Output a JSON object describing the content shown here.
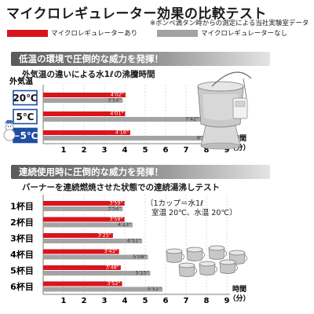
{
  "title": "マイクロレギュレーター効果の比較テスト",
  "note": "※ボンベ満タン時からの測定による当社実験室データ",
  "legend": [
    {
      "label": "マイクロレギュレーターあり",
      "color": "#d9151c"
    },
    {
      "label": "マイクロレギュレーターなし",
      "color": "#a3a3a3"
    }
  ],
  "section1": {
    "banner": "低温の環境で圧倒的な威力を発揮！",
    "subtitle": "外気温の違いによる水1ℓの沸騰時間"
  },
  "section2": {
    "banner": "連続使用時に圧倒的な威力を発揮！",
    "subtitle": "バーナーを連続燃焼させた状態での連続湯沸しテスト",
    "cond_line1": "〔1カップ＝水1ℓ",
    "cond_line2": "室温 20℃、水温 20℃〕"
  },
  "chart_data": [
    {
      "type": "bar",
      "title": "外気温の違いによる水1ℓの沸騰時間",
      "ylabel": "外気温",
      "xlabel": "時間（分）",
      "categories": [
        "20℃",
        "5℃",
        "−5℃"
      ],
      "series": [
        {
          "name": "マイクロレギュレーターあり",
          "values": [
            4.033,
            4.017,
            4.267
          ],
          "labels": [
            "4'02\"",
            "4'01\"",
            "4'16\""
          ]
        },
        {
          "name": "マイクロレギュレーターなし",
          "values": [
            3.9,
            7.7,
            8.267
          ],
          "labels": [
            "3'54\"",
            "7'42\"",
            "8'16\""
          ]
        }
      ],
      "xlim": [
        0,
        9
      ],
      "xticks": [
        "1",
        "2",
        "3",
        "4",
        "5",
        "6",
        "7",
        "8",
        "9"
      ],
      "orientation": "horizontal",
      "grid": true
    },
    {
      "type": "bar",
      "title": "バーナーを連続燃焼させた状態での連続湯沸しテスト",
      "xlabel": "時間（分）",
      "categories": [
        "1杯目",
        "2杯目",
        "3杯目",
        "4杯目",
        "5杯目",
        "6杯目"
      ],
      "series": [
        {
          "name": "マイクロレギュレーターあり",
          "values": [
            3.983,
            3.983,
            3.417,
            3.717,
            3.8,
            3.867
          ],
          "labels": [
            "3'59\"",
            "3'59\"",
            "3'25\"",
            "3'43\"",
            "3'48\"",
            "3'52\""
          ]
        },
        {
          "name": "マイクロレギュレーターなし",
          "values": [
            3.9,
            4.383,
            4.85,
            5.133,
            5.25,
            5.85
          ],
          "labels": [
            "3'54\"",
            "4'23\"",
            "4'51\"",
            "5'08\"",
            "5'15\"",
            "5'51\""
          ]
        }
      ],
      "xlim": [
        0,
        9
      ],
      "xticks": [
        "1",
        "2",
        "3",
        "4",
        "5",
        "6",
        "7",
        "8",
        "9"
      ],
      "orientation": "horizontal",
      "grid": true
    }
  ]
}
